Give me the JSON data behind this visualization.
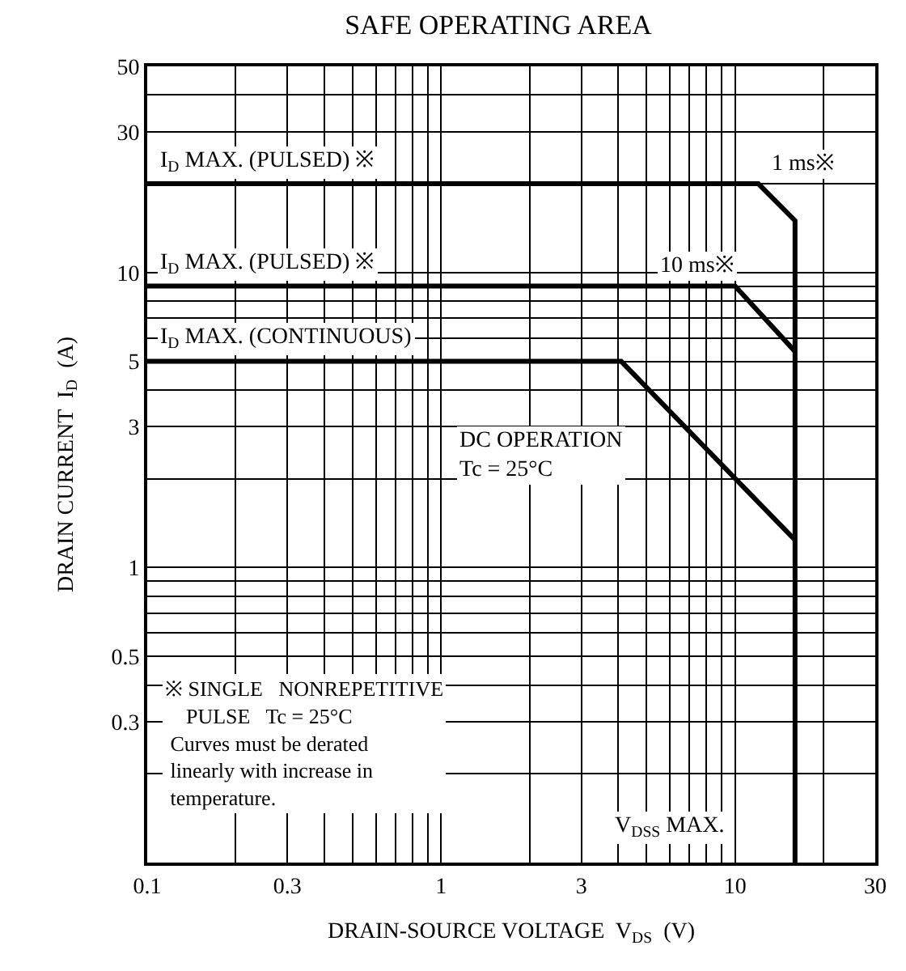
{
  "chart_data": {
    "type": "line",
    "title": "SAFE OPERATING AREA",
    "xlabel": "DRAIN-SOURCE VOLTAGE  V$_{DS}$  (V)",
    "ylabel": "DRAIN CURRENT  I$_{D}$  (A)",
    "log": "xy",
    "grid": true,
    "marker": "none",
    "line_style": "solid",
    "xlim": [
      0.1,
      30
    ],
    "ylim": [
      0.1,
      50
    ],
    "xticks": [
      0.1,
      {
        "value": 0.2,
        "label": null
      },
      0.3,
      {
        "value": 0.4,
        "label": null
      },
      {
        "value": 0.5,
        "label": null
      },
      {
        "value": 0.6,
        "label": null
      },
      {
        "value": 0.7,
        "label": null
      },
      {
        "value": 0.8,
        "label": null
      },
      {
        "value": 0.9,
        "label": null
      },
      1,
      {
        "value": 2,
        "label": null
      },
      3,
      {
        "value": 4,
        "label": null
      },
      {
        "value": 5,
        "label": null
      },
      {
        "value": 6,
        "label": null
      },
      {
        "value": 7,
        "label": null
      },
      {
        "value": 8,
        "label": null
      },
      {
        "value": 9,
        "label": null
      },
      10,
      {
        "value": 20,
        "label": null
      },
      30
    ],
    "yticks": [
      {
        "value": 0.2,
        "label": null
      },
      0.3,
      {
        "value": 0.4,
        "label": null
      },
      0.5,
      {
        "value": 0.6,
        "label": null
      },
      {
        "value": 0.7,
        "label": null
      },
      {
        "value": 0.8,
        "label": null
      },
      {
        "value": 0.9,
        "label": null
      },
      1,
      {
        "value": 2,
        "label": null
      },
      3,
      {
        "value": 4,
        "label": null
      },
      5,
      {
        "value": 6,
        "label": null
      },
      {
        "value": 7,
        "label": null
      },
      {
        "value": 8,
        "label": null
      },
      {
        "value": 9,
        "label": null
      },
      10,
      {
        "value": 20,
        "label": null
      },
      30,
      {
        "value": 40,
        "label": null
      },
      50
    ],
    "series": [
      {
        "color": "#000000",
        "x": [
          0.1,
          12,
          16,
          16
        ],
        "values": [
          20,
          20,
          15,
          0.1
        ]
      },
      {
        "color": "#000000",
        "x": [
          0.1,
          10,
          16
        ],
        "values": [
          9,
          9,
          5.4
        ]
      },
      {
        "color": "#000000",
        "x": [
          0.1,
          4.1,
          16
        ],
        "values": [
          5,
          5,
          1.24
        ]
      }
    ],
    "annotations": [
      {
        "text": "I$_{D}$ MAX. (PULSED) ※",
        "x": 0.1,
        "y": 20
      },
      {
        "text": "1 ms※",
        "x": 12,
        "y": 20
      },
      {
        "text": "I$_{D}$ MAX. (PULSED) ※",
        "x": 0.1,
        "y": 9
      },
      {
        "text": "10 ms※",
        "x": 5,
        "y": 9
      },
      {
        "text": "I$_{D}$ MAX. (CONTINUOUS)",
        "x": 0.1,
        "y": 5
      },
      "DC OPERATION\nTc = 25°C",
      "V$_{DSS}$ MAX.",
      "※ SINGLE   NONREPETITIVE\n    PULSE   Tc = 25°C\n Curves must be derated\n linearly with increase in\n temperature."
    ]
  }
}
